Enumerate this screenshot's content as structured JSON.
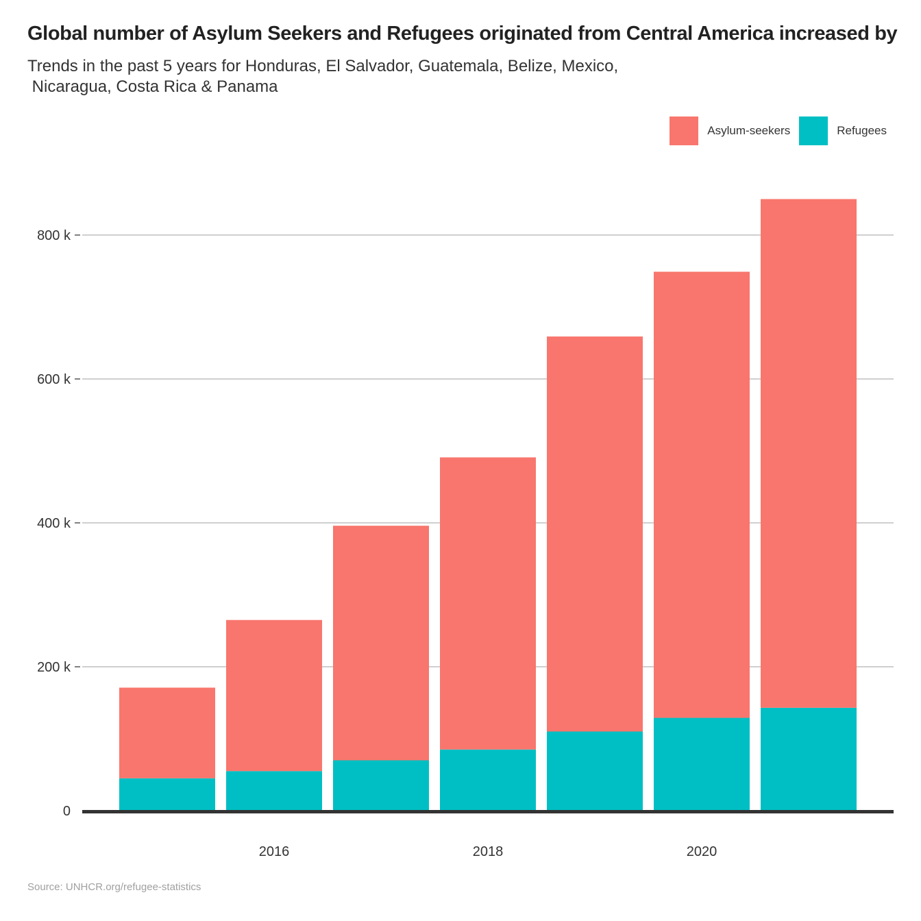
{
  "chart_data": {
    "type": "bar",
    "stacked": true,
    "title": "Global number of Asylum Seekers and Refugees originated from Central America increased by",
    "subtitle": "Trends in the past 5 years for Honduras, El Salvador, Guatemala, Belize, Mexico,\n Nicaragua, Costa Rica & Panama",
    "source": "Source: UNHCR.org/refugee-statistics",
    "x": [
      2015,
      2016,
      2017,
      2018,
      2019,
      2020,
      2021
    ],
    "x_ticks": [
      "2016",
      "2018",
      "2020"
    ],
    "y_ticks": [
      "0",
      "200 k",
      "400 k",
      "600 k",
      "800 k"
    ],
    "y_tick_values": [
      0,
      200000,
      400000,
      600000,
      800000
    ],
    "ylim": [
      0,
      850000
    ],
    "grid": "horizontal",
    "legend_position": "top-right",
    "series": [
      {
        "name": "Refugees",
        "color": "#00BFC4",
        "values": [
          45000,
          55000,
          70000,
          85000,
          110000,
          129000,
          143000
        ]
      },
      {
        "name": "Asylum-seekers",
        "color": "#F8766D",
        "values": [
          126000,
          210000,
          326000,
          406000,
          549000,
          620000,
          707000
        ]
      }
    ],
    "legend": [
      {
        "label": "Asylum-seekers",
        "color": "#F8766D"
      },
      {
        "label": "Refugees",
        "color": "#00BFC4"
      }
    ]
  }
}
